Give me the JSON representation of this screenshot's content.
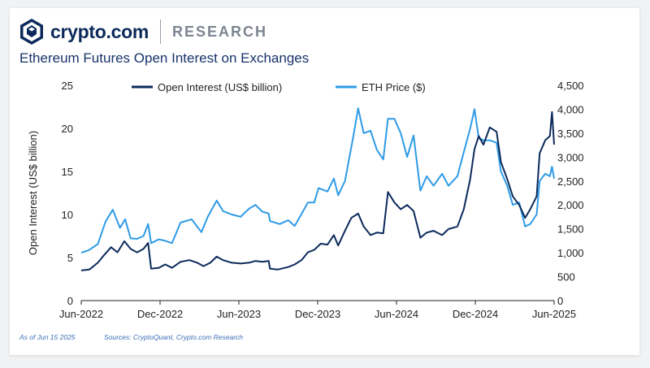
{
  "brand": {
    "name": "crypto.com",
    "section": "RESEARCH",
    "logo_icon": "crypto-com-lion-shield-icon"
  },
  "title": "Ethereum Futures Open Interest on Exchanges",
  "footer": {
    "as_of": "As of Jun 15 2025",
    "sources": "Sources: CryptoQuant, Crypto.com Research"
  },
  "colors": {
    "open_interest": "#0b2a5b",
    "eth_price": "#2e9be6",
    "text": "#17336b",
    "axis": "#222222"
  },
  "chart_data": {
    "type": "line",
    "ylabel": "Open Interest (US$ billion)",
    "ylim": [
      0,
      25
    ],
    "yticks": [
      "0",
      "5",
      "10",
      "15",
      "20",
      "25"
    ],
    "y2lim": [
      0,
      4500
    ],
    "y2ticks": [
      "0",
      "500",
      "1,000",
      "1,500",
      "2,000",
      "2,500",
      "3,000",
      "3,500",
      "4,000",
      "4,500"
    ],
    "xticks": [
      "Jun-2022",
      "Dec-2022",
      "Jun-2023",
      "Dec-2023",
      "Jun-2024",
      "Dec-2024",
      "Jun-2025"
    ],
    "xrange": [
      "2022-06-01",
      "2025-06-15"
    ],
    "legend_position": "top-center",
    "grid": false,
    "series": [
      {
        "name": "Open Interest (US$ billion)",
        "axis": "left",
        "color": "#0b2a5b",
        "points": [
          [
            "2022-06-01",
            3.5
          ],
          [
            "2022-06-20",
            3.6
          ],
          [
            "2022-07-10",
            4.4
          ],
          [
            "2022-07-25",
            5.3
          ],
          [
            "2022-08-10",
            6.2
          ],
          [
            "2022-08-25",
            5.6
          ],
          [
            "2022-09-10",
            6.9
          ],
          [
            "2022-09-25",
            6.0
          ],
          [
            "2022-10-10",
            5.6
          ],
          [
            "2022-10-25",
            6.0
          ],
          [
            "2022-11-05",
            6.7
          ],
          [
            "2022-11-12",
            3.7
          ],
          [
            "2022-11-30",
            3.8
          ],
          [
            "2022-12-15",
            4.2
          ],
          [
            "2022-12-31",
            3.8
          ],
          [
            "2023-01-20",
            4.5
          ],
          [
            "2023-02-10",
            4.7
          ],
          [
            "2023-02-28",
            4.4
          ],
          [
            "2023-03-15",
            4.0
          ],
          [
            "2023-03-31",
            4.4
          ],
          [
            "2023-04-15",
            5.1
          ],
          [
            "2023-04-30",
            4.7
          ],
          [
            "2023-05-20",
            4.4
          ],
          [
            "2023-06-10",
            4.3
          ],
          [
            "2023-06-30",
            4.4
          ],
          [
            "2023-07-15",
            4.6
          ],
          [
            "2023-07-31",
            4.5
          ],
          [
            "2023-08-15",
            4.6
          ],
          [
            "2023-08-18",
            3.7
          ],
          [
            "2023-09-05",
            3.6
          ],
          [
            "2023-09-30",
            3.9
          ],
          [
            "2023-10-15",
            4.2
          ],
          [
            "2023-10-31",
            4.7
          ],
          [
            "2023-11-15",
            5.6
          ],
          [
            "2023-11-30",
            5.9
          ],
          [
            "2023-12-15",
            6.6
          ],
          [
            "2023-12-31",
            6.5
          ],
          [
            "2024-01-15",
            7.6
          ],
          [
            "2024-01-25",
            6.4
          ],
          [
            "2024-02-10",
            8.1
          ],
          [
            "2024-02-25",
            9.6
          ],
          [
            "2024-03-12",
            10.1
          ],
          [
            "2024-03-25",
            8.6
          ],
          [
            "2024-04-10",
            7.6
          ],
          [
            "2024-04-25",
            7.9
          ],
          [
            "2024-05-10",
            7.8
          ],
          [
            "2024-05-21",
            12.6
          ],
          [
            "2024-06-05",
            11.4
          ],
          [
            "2024-06-20",
            10.6
          ],
          [
            "2024-07-05",
            11.1
          ],
          [
            "2024-07-20",
            10.4
          ],
          [
            "2024-08-05",
            7.3
          ],
          [
            "2024-08-20",
            7.9
          ],
          [
            "2024-09-05",
            8.1
          ],
          [
            "2024-09-25",
            7.6
          ],
          [
            "2024-10-10",
            8.3
          ],
          [
            "2024-10-31",
            8.6
          ],
          [
            "2024-11-15",
            10.6
          ],
          [
            "2024-11-30",
            14.1
          ],
          [
            "2024-12-10",
            17.6
          ],
          [
            "2024-12-20",
            19.1
          ],
          [
            "2024-12-31",
            18.1
          ],
          [
            "2025-01-15",
            20.1
          ],
          [
            "2025-01-31",
            19.6
          ],
          [
            "2025-02-10",
            16.1
          ],
          [
            "2025-02-25",
            14.1
          ],
          [
            "2025-03-10",
            12.1
          ],
          [
            "2025-03-25",
            11.1
          ],
          [
            "2025-04-08",
            9.6
          ],
          [
            "2025-04-20",
            10.6
          ],
          [
            "2025-05-05",
            12.1
          ],
          [
            "2025-05-12",
            17.1
          ],
          [
            "2025-05-25",
            18.6
          ],
          [
            "2025-06-05",
            19.1
          ],
          [
            "2025-06-10",
            21.9
          ],
          [
            "2025-06-15",
            18.1
          ]
        ]
      },
      {
        "name": "ETH Price ($)",
        "axis": "right",
        "color": "#2e9be6",
        "points": [
          [
            "2022-06-01",
            1000
          ],
          [
            "2022-06-18",
            1050
          ],
          [
            "2022-07-10",
            1180
          ],
          [
            "2022-07-28",
            1650
          ],
          [
            "2022-08-14",
            1900
          ],
          [
            "2022-08-31",
            1520
          ],
          [
            "2022-09-12",
            1700
          ],
          [
            "2022-09-25",
            1300
          ],
          [
            "2022-10-10",
            1290
          ],
          [
            "2022-10-25",
            1350
          ],
          [
            "2022-11-05",
            1600
          ],
          [
            "2022-11-12",
            1200
          ],
          [
            "2022-11-30",
            1280
          ],
          [
            "2022-12-15",
            1250
          ],
          [
            "2022-12-31",
            1200
          ],
          [
            "2023-01-20",
            1630
          ],
          [
            "2023-02-15",
            1700
          ],
          [
            "2023-03-10",
            1430
          ],
          [
            "2023-03-25",
            1750
          ],
          [
            "2023-04-15",
            2090
          ],
          [
            "2023-04-30",
            1870
          ],
          [
            "2023-05-20",
            1800
          ],
          [
            "2023-06-10",
            1750
          ],
          [
            "2023-06-30",
            1920
          ],
          [
            "2023-07-15",
            2000
          ],
          [
            "2023-07-31",
            1860
          ],
          [
            "2023-08-15",
            1820
          ],
          [
            "2023-08-18",
            1660
          ],
          [
            "2023-09-10",
            1600
          ],
          [
            "2023-09-30",
            1680
          ],
          [
            "2023-10-15",
            1560
          ],
          [
            "2023-10-31",
            1810
          ],
          [
            "2023-11-15",
            2050
          ],
          [
            "2023-11-30",
            2050
          ],
          [
            "2023-12-10",
            2350
          ],
          [
            "2023-12-31",
            2280
          ],
          [
            "2024-01-15",
            2550
          ],
          [
            "2024-01-25",
            2200
          ],
          [
            "2024-02-10",
            2500
          ],
          [
            "2024-02-29",
            3400
          ],
          [
            "2024-03-12",
            4020
          ],
          [
            "2024-03-25",
            3500
          ],
          [
            "2024-04-10",
            3550
          ],
          [
            "2024-04-25",
            3150
          ],
          [
            "2024-05-10",
            2950
          ],
          [
            "2024-05-21",
            3800
          ],
          [
            "2024-06-05",
            3800
          ],
          [
            "2024-06-20",
            3500
          ],
          [
            "2024-07-05",
            3000
          ],
          [
            "2024-07-20",
            3450
          ],
          [
            "2024-08-05",
            2300
          ],
          [
            "2024-08-20",
            2600
          ],
          [
            "2024-09-05",
            2400
          ],
          [
            "2024-09-25",
            2650
          ],
          [
            "2024-10-10",
            2400
          ],
          [
            "2024-10-31",
            2600
          ],
          [
            "2024-11-15",
            3100
          ],
          [
            "2024-11-30",
            3600
          ],
          [
            "2024-12-10",
            4000
          ],
          [
            "2024-12-20",
            3400
          ],
          [
            "2024-12-31",
            3350
          ],
          [
            "2025-01-15",
            3350
          ],
          [
            "2025-01-31",
            3300
          ],
          [
            "2025-02-10",
            2700
          ],
          [
            "2025-02-25",
            2400
          ],
          [
            "2025-03-10",
            2000
          ],
          [
            "2025-03-25",
            2050
          ],
          [
            "2025-04-08",
            1550
          ],
          [
            "2025-04-20",
            1600
          ],
          [
            "2025-05-05",
            1800
          ],
          [
            "2025-05-12",
            2500
          ],
          [
            "2025-05-25",
            2650
          ],
          [
            "2025-06-05",
            2600
          ],
          [
            "2025-06-10",
            2800
          ],
          [
            "2025-06-15",
            2550
          ]
        ]
      }
    ]
  }
}
